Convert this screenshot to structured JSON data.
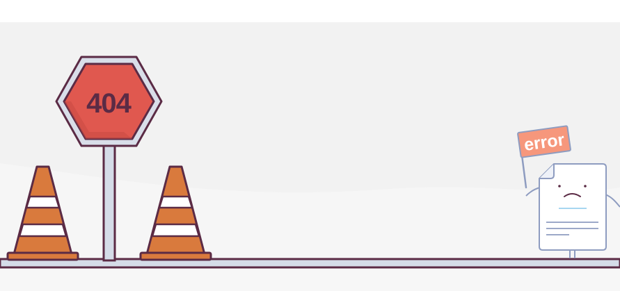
{
  "scene": {
    "sign_text": "404",
    "flag_text": "error"
  },
  "colors": {
    "page_bg": "#ffffff",
    "band_bg": "#f2f2f2",
    "outline": "#5b2b45",
    "sign_red": "#e0584f",
    "sign_frame": "#d9dee9",
    "cone_orange": "#d97a3d",
    "cone_stripe": "#ffffff",
    "pole": "#d5dce8",
    "flag": "#f6977c",
    "paper": "#ffffff",
    "paper_outline": "#8e9cc0"
  },
  "icons": {
    "sign": "stop-sign-hexagon",
    "cone": "traffic-cone",
    "document": "sad-document-character"
  }
}
